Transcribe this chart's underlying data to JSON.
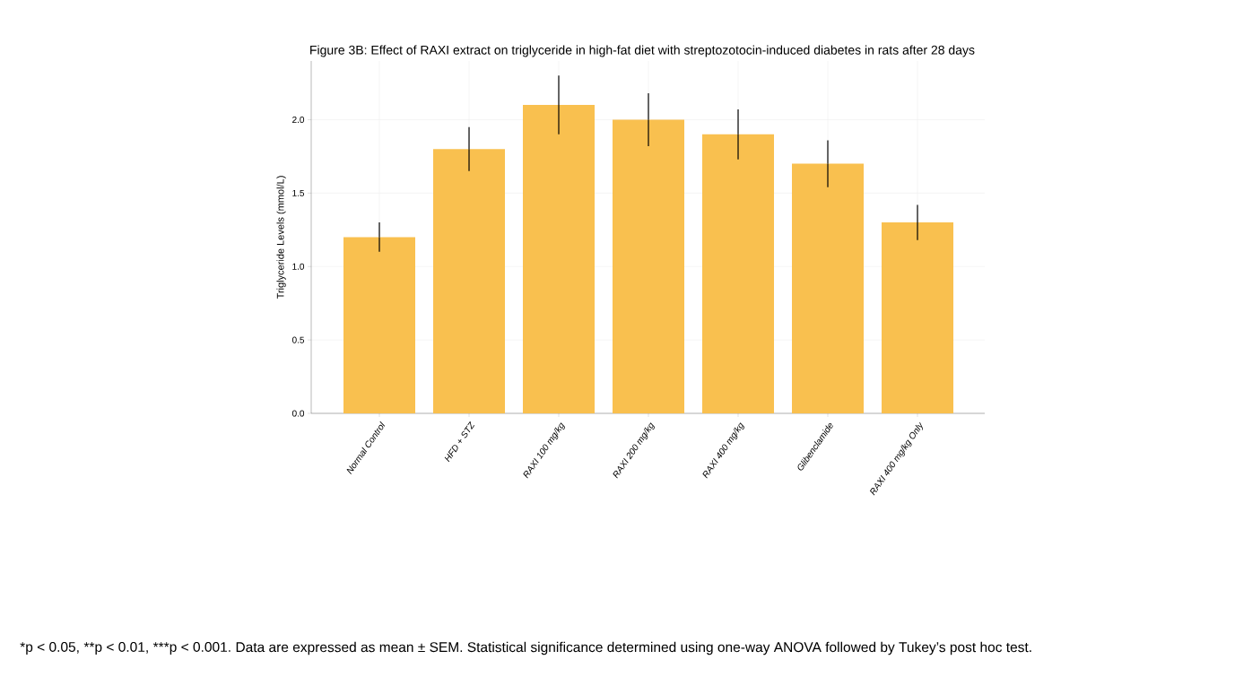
{
  "chart_data": {
    "type": "bar",
    "title": "Figure 3B: Effect of RAXI extract on triglyceride in high-fat diet with streptozotocin-induced diabetes in rats after 28 days",
    "ylabel": "Triglyceride Levels (mmol/L)",
    "categories": [
      "Normal Control",
      "HFD + STZ",
      "RAXI 100 mg/kg",
      "RAXI 200 mg/kg",
      "RAXI 400 mg/kg",
      "Glibenclamide",
      "RAXI 400 mg/kg Only"
    ],
    "values": [
      1.2,
      1.8,
      2.1,
      2.0,
      1.9,
      1.7,
      1.3
    ],
    "errors": [
      0.1,
      0.15,
      0.2,
      0.18,
      0.17,
      0.16,
      0.12
    ],
    "color": "#f9c04f",
    "ylim": [
      0,
      2.4
    ],
    "yticks": [
      {
        "value": 0,
        "label": "0.0"
      },
      0.5,
      {
        "value": 1,
        "label": "1.0"
      },
      1.5,
      {
        "value": 2,
        "label": "2.0"
      }
    ],
    "grid": true,
    "annotations": [
      "*p < 0.05,",
      "**p < 0.01,",
      "***p < 0.001.",
      "Data are expressed as mean ± SEM. Statistical significance determined using one-way ANOVA followed by Tukey’s post hoc test."
    ]
  }
}
